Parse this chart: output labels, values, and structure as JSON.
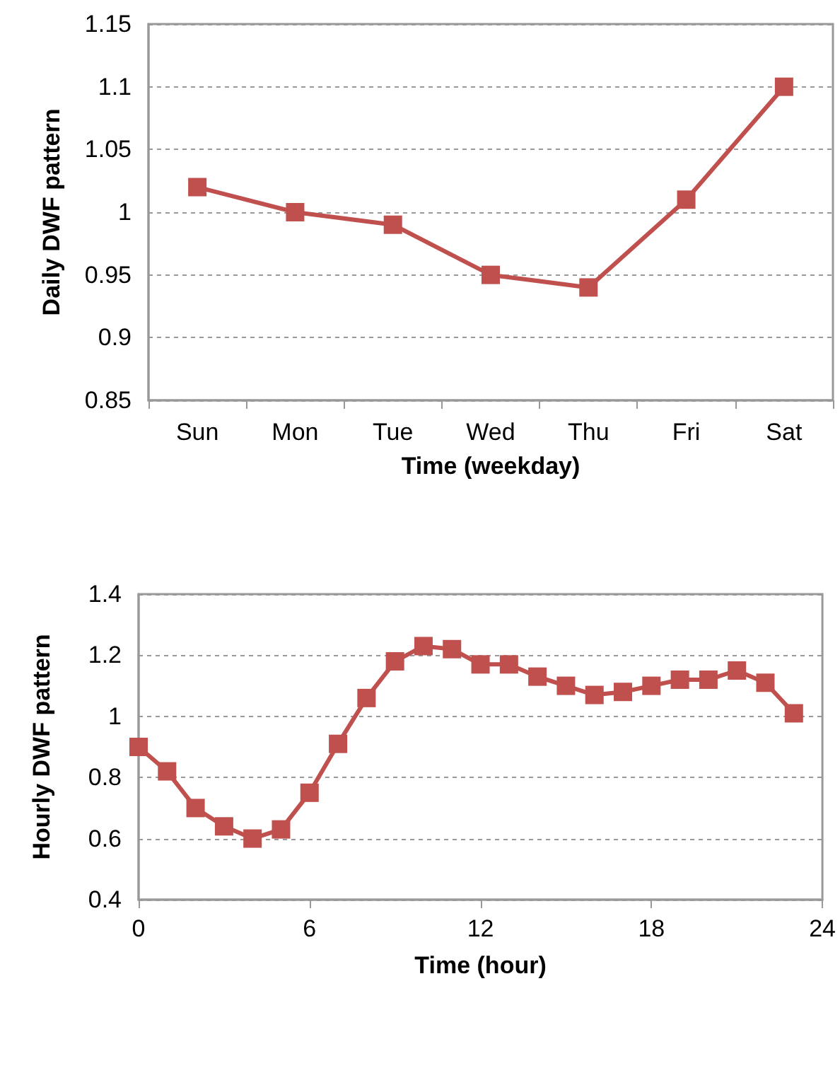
{
  "chart_data": [
    {
      "type": "line",
      "xlabel": "Time (weekday)",
      "ylabel": "Daily DWF pattern",
      "categories": [
        "Sun",
        "Mon",
        "Tue",
        "Wed",
        "Thu",
        "Fri",
        "Sat"
      ],
      "series": [
        {
          "color": "#c0504d",
          "values": [
            1.02,
            1.0,
            0.99,
            0.95,
            0.94,
            1.01,
            1.1
          ]
        }
      ],
      "ylim": [
        0.85,
        1.15
      ],
      "yticks": [
        0.85,
        0.9,
        0.95,
        1,
        1.05,
        1.1,
        1.15
      ],
      "grid": "y",
      "marker": "square",
      "line_style": "solid"
    },
    {
      "type": "line",
      "xlabel": "Time (hour)",
      "ylabel": "Hourly DWF pattern",
      "x": [
        0,
        1,
        2,
        3,
        4,
        5,
        6,
        7,
        8,
        9,
        10,
        11,
        12,
        13,
        14,
        15,
        16,
        17,
        18,
        19,
        20,
        21,
        22,
        23
      ],
      "series": [
        {
          "color": "#c0504d",
          "values": [
            0.9,
            0.82,
            0.7,
            0.64,
            0.6,
            0.63,
            0.75,
            0.91,
            1.06,
            1.18,
            1.23,
            1.22,
            1.17,
            1.17,
            1.13,
            1.1,
            1.07,
            1.08,
            1.1,
            1.12,
            1.12,
            1.15,
            1.11,
            1.01
          ]
        }
      ],
      "xlim": [
        0,
        24
      ],
      "xticks": [
        0,
        6,
        12,
        18,
        24
      ],
      "ylim": [
        0.4,
        1.4
      ],
      "yticks": [
        0.4,
        0.6,
        0.8,
        1,
        1.2,
        1.4
      ],
      "grid": "y",
      "marker": "square",
      "line_style": "solid"
    }
  ]
}
